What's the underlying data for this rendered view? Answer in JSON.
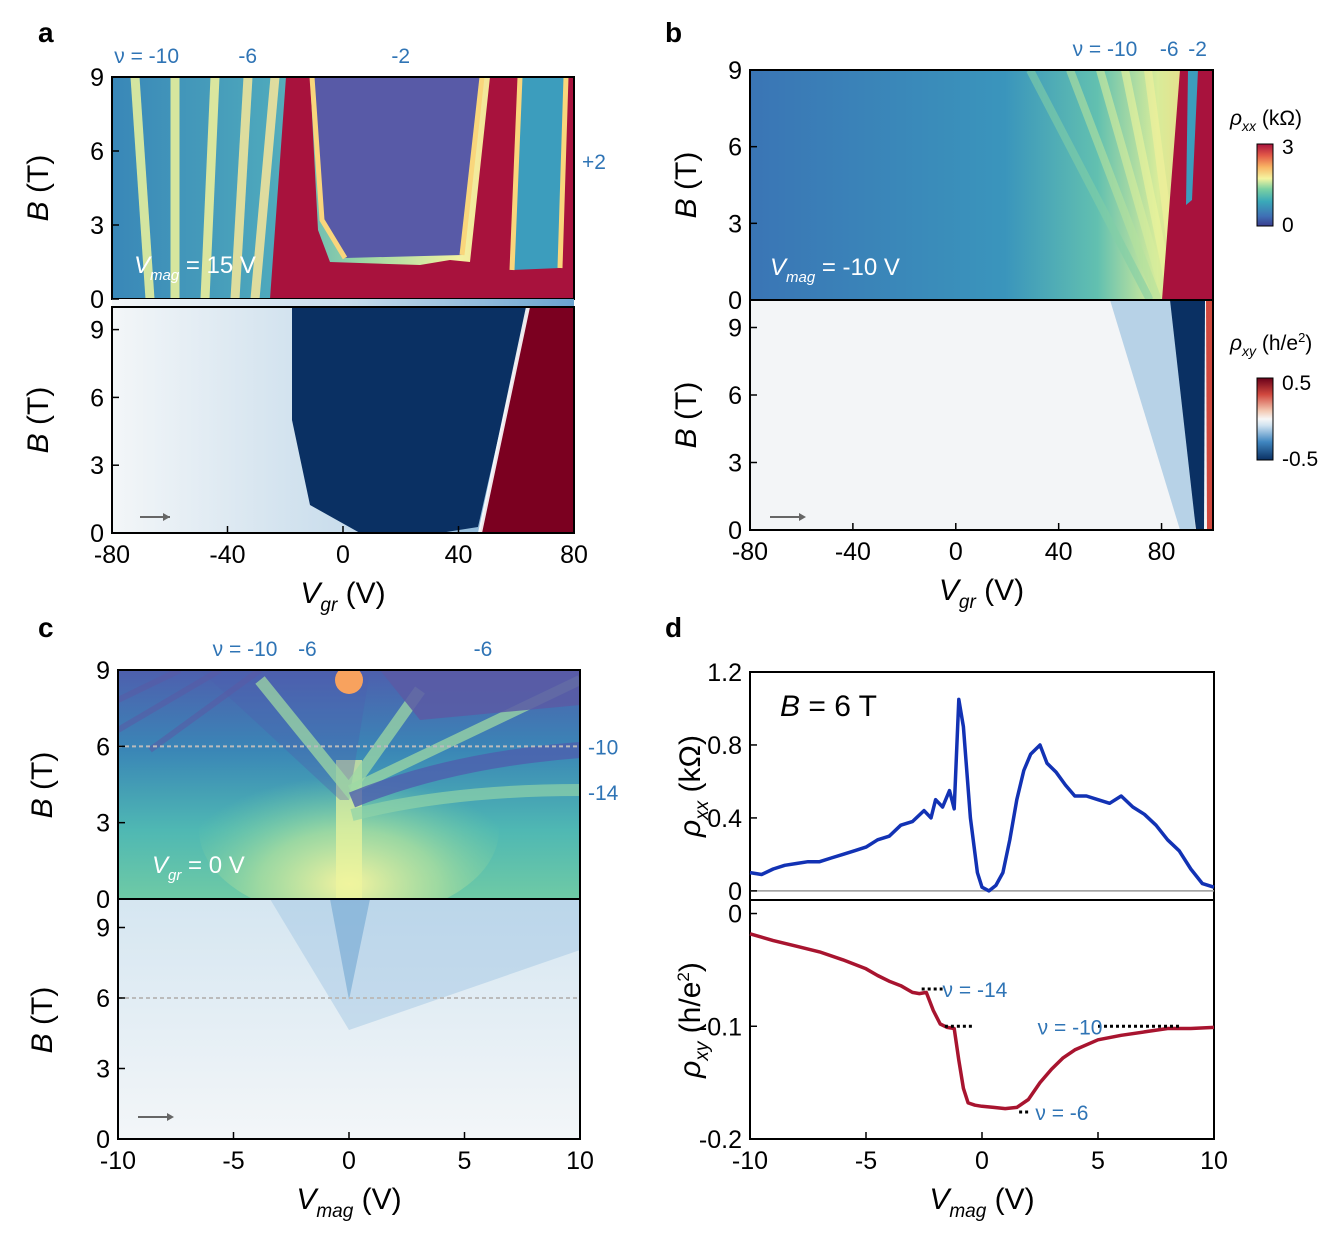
{
  "panels": {
    "a": {
      "letter": "a",
      "nu_top": [
        {
          "text": "ν = -10",
          "x": -68
        },
        {
          "text": "-6",
          "x": -33
        },
        {
          "text": "-2",
          "x": 20
        }
      ],
      "nu_right": [
        {
          "text": "+2",
          "y": 5.6
        }
      ],
      "inset": {
        "var": "V",
        "sub": "mag",
        "rest": " = 15 V"
      }
    },
    "b": {
      "letter": "b",
      "nu_top": [
        {
          "text": "ν = -10",
          "x": 58
        },
        {
          "text": "-6",
          "x": 83
        },
        {
          "text": "-2",
          "x": 94
        }
      ],
      "inset": {
        "var": "V",
        "sub": "mag",
        "rest": " = -10 V"
      }
    },
    "c": {
      "letter": "c",
      "nu_top": [
        {
          "text": "ν = -10",
          "x": -4.5
        },
        {
          "text": "-6",
          "x": -1.8
        },
        {
          "text": "-6",
          "x": 5.8
        }
      ],
      "nu_right": [
        {
          "text": "-10",
          "y": 6.0
        },
        {
          "text": "-14",
          "y": 4.2
        }
      ],
      "inset": {
        "var": "V",
        "sub": "gr",
        "rest": " = 0 V"
      }
    },
    "d": {
      "letter": "d",
      "inset": {
        "var": "B",
        "rest": " = 6 T"
      },
      "nu_labels": [
        {
          "text": "ν = -14",
          "x": -1.7,
          "y": -0.067
        },
        {
          "text": "ν = -10",
          "x": 2.4,
          "y": -0.1
        },
        {
          "text": "ν = -6",
          "x": 2.3,
          "y": -0.176
        }
      ]
    }
  },
  "axes": {
    "B": {
      "var": "B",
      "unit": " (T)"
    },
    "Vgr": {
      "var": "V",
      "sub": "gr",
      "unit": " (V)"
    },
    "Vmag": {
      "var": "V",
      "sub": "mag",
      "unit": " (V)"
    },
    "rhoxx": {
      "var": "ρ",
      "sub": "xx",
      "unit": " (kΩ)"
    },
    "rhoxy": {
      "var": "ρ",
      "sub": "xy",
      "unit": " (h/e",
      "sup": "2",
      "unit2": ")"
    }
  },
  "colorbars": {
    "rhoxx": {
      "var": "ρ",
      "sub": "xx",
      "unit": " (kΩ)",
      "ticks": [
        "3",
        "0"
      ]
    },
    "rhoxy": {
      "var": "ρ",
      "sub": "xy",
      "unit": " (h/e",
      "sup": "2",
      "unit2": ")",
      "ticks": [
        "0.5",
        "-0.5"
      ]
    }
  },
  "colors": {
    "rhoxx_line": "#1232b4",
    "rhoxy_line": "#a8142f",
    "nu_text": "#2f74b5",
    "guide": "#bbbbbb"
  },
  "chart_data": [
    {
      "panel": "a",
      "type": "heatmap",
      "series": "rho_xx",
      "xlim": [
        -80,
        80
      ],
      "ylim": [
        0,
        9
      ],
      "xticks": [
        -80,
        -40,
        0,
        40,
        80
      ],
      "yticks": [
        0,
        3,
        6,
        9
      ],
      "xlabel": "V_gr (V)",
      "ylabel": "B (T)"
    },
    {
      "panel": "a",
      "type": "heatmap",
      "series": "rho_xy",
      "xlim": [
        -80,
        80
      ],
      "ylim": [
        0,
        10
      ],
      "xticks": [
        -80,
        -40,
        0,
        40,
        80
      ],
      "yticks": [
        0,
        3,
        6,
        9
      ],
      "xlabel": "V_gr (V)",
      "ylabel": "B (T)"
    },
    {
      "panel": "b",
      "type": "heatmap",
      "series": "rho_xx",
      "xlim": [
        -80,
        100
      ],
      "ylim": [
        0,
        9
      ],
      "xticks": [
        -80,
        -40,
        0,
        40,
        80
      ],
      "yticks": [
        0,
        3,
        6,
        9
      ],
      "xlabel": "V_gr (V)",
      "ylabel": "B (T)"
    },
    {
      "panel": "b",
      "type": "heatmap",
      "series": "rho_xy",
      "xlim": [
        -80,
        100
      ],
      "ylim": [
        0,
        10
      ],
      "xticks": [
        -80,
        -40,
        0,
        40,
        80
      ],
      "yticks": [
        0,
        3,
        6,
        9
      ],
      "xlabel": "V_gr (V)",
      "ylabel": "B (T)"
    },
    {
      "panel": "c",
      "type": "heatmap",
      "series": "rho_xx",
      "xlim": [
        -10,
        10
      ],
      "ylim": [
        0,
        9
      ],
      "xticks": [
        -10,
        -5,
        0,
        5,
        10
      ],
      "yticks": [
        0,
        3,
        6,
        9
      ],
      "xlabel": "V_mag (V)",
      "ylabel": "B (T)",
      "guide_B": 6
    },
    {
      "panel": "c",
      "type": "heatmap",
      "series": "rho_xy",
      "xlim": [
        -10,
        10
      ],
      "ylim": [
        0,
        10
      ],
      "xticks": [
        -10,
        -5,
        0,
        5,
        10
      ],
      "yticks": [
        0,
        3,
        6,
        9
      ],
      "xlabel": "V_mag (V)",
      "ylabel": "B (T)",
      "guide_B": 6
    },
    {
      "panel": "d",
      "type": "line",
      "name": "rho_xx",
      "xlabel": "V_mag (V)",
      "ylabel": "ρ_xx (kΩ)",
      "xlim": [
        -10,
        10
      ],
      "ylim": [
        -0.05,
        1.2
      ],
      "xticks": [
        -10,
        -5,
        0,
        5,
        10
      ],
      "yticks": [
        0,
        0.4,
        0.8,
        1.2
      ],
      "ytick_labels": [
        "0",
        "0.4",
        "0.8",
        "1.2"
      ],
      "x": [
        -10,
        -9.5,
        -9,
        -8.5,
        -8,
        -7.5,
        -7,
        -6.5,
        -6,
        -5.5,
        -5,
        -4.5,
        -4,
        -3.5,
        -3,
        -2.5,
        -2.2,
        -2,
        -1.7,
        -1.4,
        -1.2,
        -1,
        -0.8,
        -0.5,
        -0.2,
        0,
        0.3,
        0.6,
        0.9,
        1.2,
        1.5,
        1.8,
        2.1,
        2.5,
        2.8,
        3.2,
        3.6,
        4,
        4.5,
        5,
        5.5,
        6,
        6.5,
        7,
        7.5,
        8,
        8.5,
        9,
        9.5,
        10
      ],
      "y": [
        0.1,
        0.09,
        0.12,
        0.14,
        0.15,
        0.16,
        0.16,
        0.18,
        0.2,
        0.22,
        0.24,
        0.28,
        0.3,
        0.36,
        0.38,
        0.44,
        0.4,
        0.5,
        0.46,
        0.55,
        0.45,
        1.05,
        0.9,
        0.4,
        0.1,
        0.02,
        0,
        0.03,
        0.1,
        0.28,
        0.5,
        0.66,
        0.75,
        0.8,
        0.7,
        0.65,
        0.58,
        0.52,
        0.52,
        0.5,
        0.48,
        0.52,
        0.46,
        0.42,
        0.36,
        0.28,
        0.22,
        0.12,
        0.04,
        0.02
      ]
    },
    {
      "panel": "d",
      "type": "line",
      "name": "rho_xy",
      "xlabel": "V_mag (V)",
      "ylabel": "ρ_xy (h/e²)",
      "xlim": [
        -10,
        10
      ],
      "ylim": [
        -0.2,
        0.012
      ],
      "xticks": [
        -10,
        -5,
        0,
        5,
        10
      ],
      "yticks": [
        0,
        -0.1,
        -0.2
      ],
      "ytick_labels": [
        "0",
        "-0.1",
        "-0.2"
      ],
      "x": [
        -10,
        -9,
        -8,
        -7,
        -6,
        -5,
        -4.5,
        -4,
        -3.5,
        -3,
        -2.7,
        -2.4,
        -2.1,
        -1.8,
        -1.5,
        -1.2,
        -1,
        -0.8,
        -0.6,
        -0.3,
        0,
        0.5,
        1,
        1.5,
        2,
        2.5,
        3,
        3.5,
        4,
        5,
        6,
        7,
        8,
        9,
        10
      ],
      "y": [
        -0.018,
        -0.024,
        -0.029,
        -0.034,
        -0.041,
        -0.049,
        -0.055,
        -0.06,
        -0.064,
        -0.07,
        -0.071,
        -0.07,
        -0.086,
        -0.098,
        -0.101,
        -0.102,
        -0.13,
        -0.155,
        -0.168,
        -0.17,
        -0.171,
        -0.172,
        -0.173,
        -0.172,
        -0.165,
        -0.15,
        -0.138,
        -0.128,
        -0.121,
        -0.112,
        -0.108,
        -0.105,
        -0.102,
        -0.102,
        -0.101
      ],
      "plateaus": [
        {
          "label": "ν = -14",
          "value": -0.067,
          "x_range": [
            -2.6,
            -1.7
          ]
        },
        {
          "label": "ν = -10",
          "value": -0.1,
          "x_range": [
            -1.6,
            -0.4
          ]
        },
        {
          "label": "ν = -10",
          "value": -0.1,
          "x_range": [
            5,
            8.6
          ]
        },
        {
          "label": "ν = -6",
          "value": -0.176,
          "x_range": [
            1.6,
            2.1
          ]
        }
      ]
    }
  ]
}
